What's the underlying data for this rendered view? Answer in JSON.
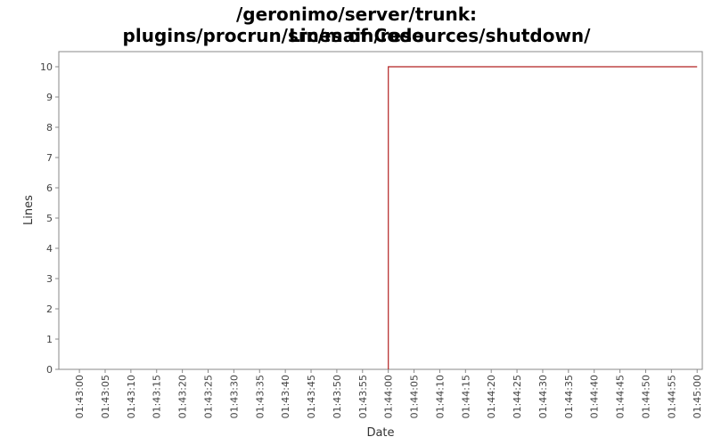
{
  "chart_data": {
    "type": "line",
    "title": "/geronimo/server/trunk: plugins/procrun/src/main/resources/shutdown/",
    "subtitle": "Lines of Code",
    "xlabel": "Date",
    "ylabel": "Lines",
    "x_ticks": [
      "01:43:00",
      "01:43:05",
      "01:43:10",
      "01:43:15",
      "01:43:20",
      "01:43:25",
      "01:43:30",
      "01:43:35",
      "01:43:40",
      "01:43:45",
      "01:43:50",
      "01:43:55",
      "01:44:00",
      "01:44:05",
      "01:44:10",
      "01:44:15",
      "01:44:20",
      "01:44:25",
      "01:44:30",
      "01:44:35",
      "01:44:40",
      "01:44:45",
      "01:44:50",
      "01:44:55",
      "01:45:00"
    ],
    "y_ticks": [
      0,
      1,
      2,
      3,
      4,
      5,
      6,
      7,
      8,
      9,
      10
    ],
    "ylim": [
      0,
      10.5
    ],
    "xlim": [
      "01:42:56",
      "01:45:01"
    ],
    "grid": false,
    "series": [
      {
        "color": "#b22222",
        "step": true,
        "points": [
          {
            "x": "01:44:00",
            "y": 0
          },
          {
            "x": "01:44:00",
            "y": 10
          },
          {
            "x": "01:45:00",
            "y": 10
          }
        ]
      }
    ]
  }
}
